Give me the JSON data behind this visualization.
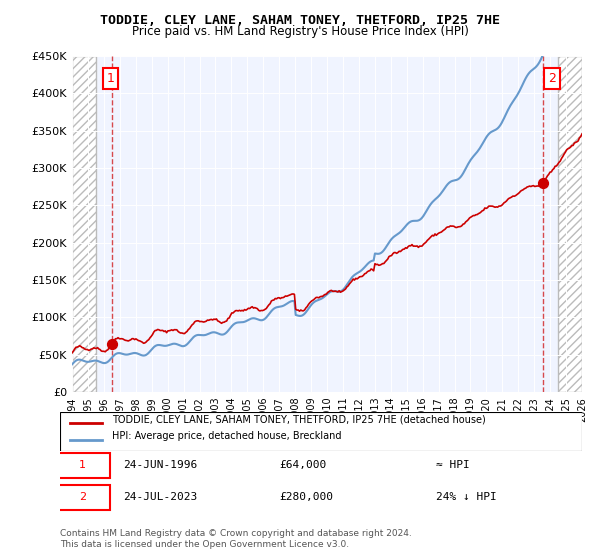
{
  "title": "TODDIE, CLEY LANE, SAHAM TONEY, THETFORD, IP25 7HE",
  "subtitle": "Price paid vs. HM Land Registry's House Price Index (HPI)",
  "legend_line1": "TODDIE, CLEY LANE, SAHAM TONEY, THETFORD, IP25 7HE (detached house)",
  "legend_line2": "HPI: Average price, detached house, Breckland",
  "annotation1_label": "1",
  "annotation1_date": "24-JUN-1996",
  "annotation1_price": "£64,000",
  "annotation1_hpi": "≈ HPI",
  "annotation2_label": "2",
  "annotation2_date": "24-JUL-2023",
  "annotation2_price": "£280,000",
  "annotation2_hpi": "24% ↓ HPI",
  "footer": "Contains HM Land Registry data © Crown copyright and database right 2024.\nThis data is licensed under the Open Government Licence v3.0.",
  "sale1_year": 1996.48,
  "sale1_price": 64000,
  "sale2_year": 2023.56,
  "sale2_price": 280000,
  "hpi_color": "#6699cc",
  "price_color": "#cc0000",
  "bg_color": "#f0f4ff",
  "hatch_color": "#cccccc",
  "ylim_max": 450000,
  "xmin": 1994,
  "xmax": 2026
}
